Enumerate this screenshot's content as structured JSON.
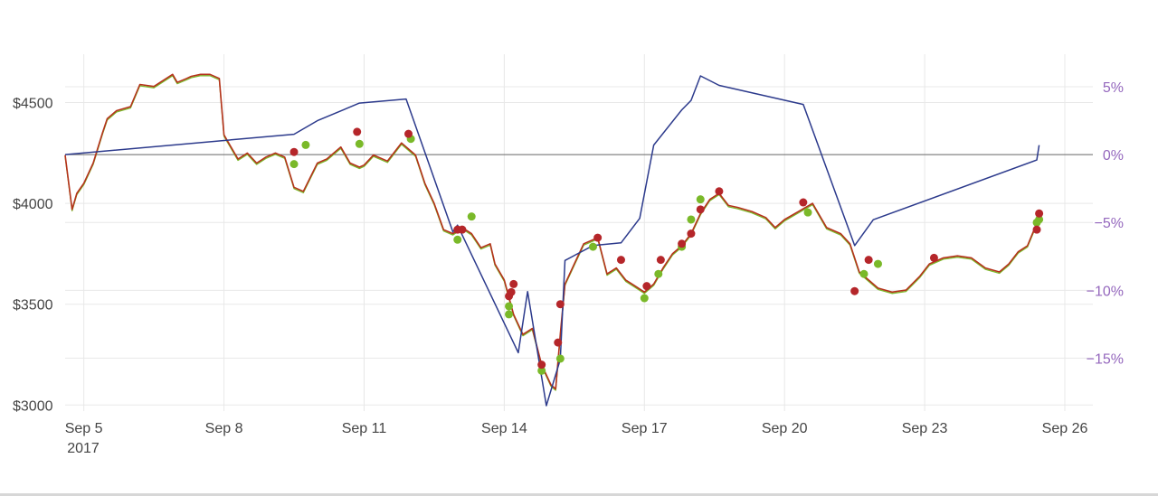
{
  "chart_data": {
    "type": "line",
    "title": "",
    "xlabel": "",
    "ylabel": "",
    "y2label": "",
    "grid": true,
    "x_ticks": [
      "Sep 5",
      "Sep 8",
      "Sep 11",
      "Sep 14",
      "Sep 17",
      "Sep 20",
      "Sep 23",
      "Sep 26"
    ],
    "x_tick_days": [
      5,
      8,
      11,
      14,
      17,
      20,
      23,
      26
    ],
    "x_year_label": "2017",
    "xlim_days": [
      4.6,
      26.6
    ],
    "y_ticks": [
      "$3000",
      "$3500",
      "$4000",
      "$4500"
    ],
    "y_tick_values": [
      3000,
      3500,
      4000,
      4500
    ],
    "ylim": [
      2970,
      4740
    ],
    "y2_ticks": [
      "5%",
      "0%",
      "−5%",
      "−10%",
      "−15%"
    ],
    "y2_tick_values": [
      5,
      0,
      -5,
      -10,
      -15
    ],
    "y2lim": [
      -18.9,
      7.4
    ],
    "colors": {
      "price_line": "#b5321c",
      "price_line_alt": "#7ab929",
      "return_line": "#2c3a8c",
      "zero_line": "#666666",
      "buy_marker": "#7ab929",
      "sell_marker": "#b5262a"
    },
    "series": [
      {
        "axis": "y",
        "role": "price",
        "x": [
          4.6,
          4.75,
          4.85,
          5.0,
          5.2,
          5.4,
          5.5,
          5.7,
          6.0,
          6.2,
          6.5,
          6.9,
          7.0,
          7.2,
          7.3,
          7.5,
          7.7,
          7.9,
          8.0,
          8.1,
          8.3,
          8.5,
          8.7,
          8.9,
          9.1,
          9.3,
          9.5,
          9.7,
          10.0,
          10.2,
          10.5,
          10.7,
          10.9,
          11.0,
          11.2,
          11.5,
          11.8,
          12.1,
          12.3,
          12.5,
          12.7,
          12.9,
          13.1,
          13.3,
          13.5,
          13.7,
          13.8,
          14.0,
          14.2,
          14.4,
          14.6,
          14.8,
          15.0,
          15.1,
          15.2,
          15.3,
          15.5,
          15.7,
          16.0,
          16.2,
          16.4,
          16.6,
          16.8,
          17.0,
          17.2,
          17.4,
          17.6,
          17.8,
          18.0,
          18.2,
          18.4,
          18.6,
          18.8,
          19.0,
          19.3,
          19.6,
          19.8,
          20.0,
          20.3,
          20.6,
          20.9,
          21.2,
          21.4,
          21.6,
          21.8,
          22.0,
          22.3,
          22.6,
          22.9,
          23.1,
          23.4,
          23.7,
          24.0,
          24.3,
          24.6,
          24.8,
          25.0,
          25.2,
          25.45
        ],
        "values": [
          4240,
          3970,
          4050,
          4100,
          4200,
          4350,
          4420,
          4460,
          4480,
          4590,
          4580,
          4640,
          4600,
          4620,
          4630,
          4640,
          4640,
          4620,
          4340,
          4300,
          4220,
          4250,
          4200,
          4230,
          4250,
          4230,
          4080,
          4060,
          4200,
          4220,
          4280,
          4200,
          4180,
          4190,
          4240,
          4210,
          4300,
          4240,
          4100,
          4000,
          3870,
          3850,
          3880,
          3850,
          3780,
          3800,
          3700,
          3620,
          3450,
          3350,
          3380,
          3200,
          3100,
          3080,
          3350,
          3600,
          3700,
          3800,
          3830,
          3650,
          3680,
          3620,
          3590,
          3560,
          3600,
          3680,
          3750,
          3790,
          3850,
          3950,
          4020,
          4050,
          3990,
          3980,
          3960,
          3930,
          3880,
          3920,
          3960,
          4000,
          3880,
          3850,
          3800,
          3660,
          3620,
          3580,
          3560,
          3570,
          3640,
          3700,
          3730,
          3740,
          3730,
          3680,
          3660,
          3700,
          3760,
          3790,
          3930
        ]
      },
      {
        "axis": "y2",
        "role": "return",
        "x": [
          4.6,
          9.5,
          10.0,
          10.9,
          11.9,
          12.4,
          12.9,
          13.0,
          14.3,
          14.5,
          14.9,
          15.2,
          15.3,
          15.9,
          16.5,
          16.9,
          17.2,
          17.8,
          18.0,
          18.2,
          18.6,
          20.4,
          21.5,
          21.9,
          25.4,
          25.45
        ],
        "values": [
          0,
          1.5,
          2.5,
          3.8,
          4.1,
          -0.8,
          -5.7,
          -5.2,
          -14.6,
          -10.1,
          -18.5,
          -15.1,
          -7.8,
          -6.7,
          -6.5,
          -4.7,
          0.7,
          3.3,
          4.0,
          5.8,
          5.1,
          3.7,
          -6.7,
          -4.8,
          -0.4,
          0.7
        ]
      }
    ],
    "markers": {
      "buy": [
        {
          "x": 9.5,
          "y": 4195
        },
        {
          "x": 9.75,
          "y": 4290
        },
        {
          "x": 10.9,
          "y": 4295
        },
        {
          "x": 12.0,
          "y": 4320
        },
        {
          "x": 13.0,
          "y": 3820
        },
        {
          "x": 13.3,
          "y": 3935
        },
        {
          "x": 14.1,
          "y": 3450
        },
        {
          "x": 14.1,
          "y": 3490
        },
        {
          "x": 14.8,
          "y": 3170
        },
        {
          "x": 15.2,
          "y": 3230
        },
        {
          "x": 15.9,
          "y": 3785
        },
        {
          "x": 17.0,
          "y": 3530
        },
        {
          "x": 17.3,
          "y": 3650
        },
        {
          "x": 17.8,
          "y": 3785
        },
        {
          "x": 18.0,
          "y": 3920
        },
        {
          "x": 18.2,
          "y": 4020
        },
        {
          "x": 20.5,
          "y": 3955
        },
        {
          "x": 21.7,
          "y": 3650
        },
        {
          "x": 22.0,
          "y": 3700
        },
        {
          "x": 25.4,
          "y": 3905
        },
        {
          "x": 25.45,
          "y": 3920
        }
      ],
      "sell": [
        {
          "x": 9.5,
          "y": 4255
        },
        {
          "x": 10.85,
          "y": 4355
        },
        {
          "x": 11.95,
          "y": 4345
        },
        {
          "x": 13.0,
          "y": 3870
        },
        {
          "x": 13.1,
          "y": 3870
        },
        {
          "x": 14.1,
          "y": 3540
        },
        {
          "x": 14.15,
          "y": 3560
        },
        {
          "x": 14.2,
          "y": 3600
        },
        {
          "x": 14.8,
          "y": 3200
        },
        {
          "x": 15.15,
          "y": 3310
        },
        {
          "x": 15.2,
          "y": 3500
        },
        {
          "x": 16.0,
          "y": 3830
        },
        {
          "x": 16.5,
          "y": 3720
        },
        {
          "x": 17.05,
          "y": 3590
        },
        {
          "x": 17.35,
          "y": 3720
        },
        {
          "x": 17.8,
          "y": 3800
        },
        {
          "x": 18.0,
          "y": 3850
        },
        {
          "x": 18.2,
          "y": 3970
        },
        {
          "x": 18.6,
          "y": 4060
        },
        {
          "x": 20.4,
          "y": 4005
        },
        {
          "x": 21.5,
          "y": 3565
        },
        {
          "x": 21.8,
          "y": 3720
        },
        {
          "x": 23.2,
          "y": 3730
        },
        {
          "x": 25.4,
          "y": 3870
        },
        {
          "x": 25.45,
          "y": 3950
        }
      ]
    }
  }
}
